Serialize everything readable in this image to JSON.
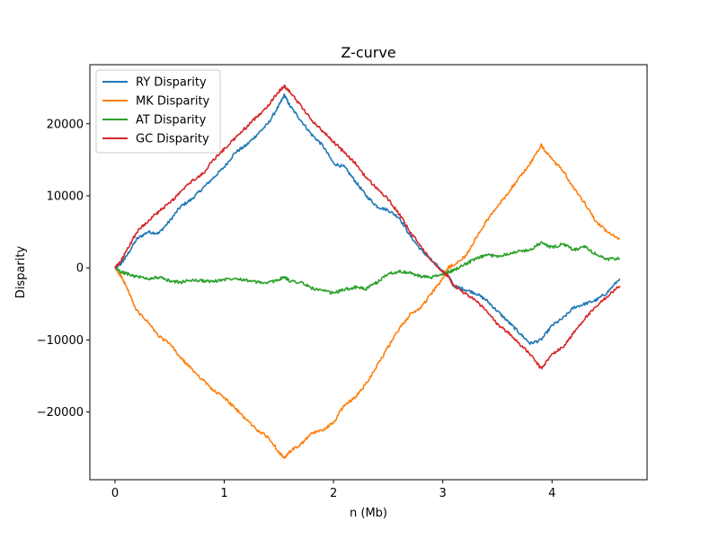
{
  "chart_data": {
    "type": "line",
    "title": "Z-curve",
    "xlabel": "n (Mb)",
    "ylabel": "Disparity",
    "xlim": [
      -0.23,
      4.87
    ],
    "ylim": [
      -29400,
      28200
    ],
    "xticks": [
      0,
      1,
      2,
      3,
      4
    ],
    "xtick_labels": [
      "0",
      "1",
      "2",
      "3",
      "4"
    ],
    "yticks": [
      -20000,
      -10000,
      0,
      10000,
      20000
    ],
    "ytick_labels": [
      "−20000",
      "−10000",
      "0",
      "10000",
      "20000"
    ],
    "grid": false,
    "legend_position": "top-left",
    "series": [
      {
        "name": "RY Disparity",
        "color": "#1f77b4",
        "x": [
          0,
          0.05,
          0.1,
          0.2,
          0.3,
          0.4,
          0.5,
          0.6,
          0.7,
          0.8,
          0.9,
          1.0,
          1.1,
          1.2,
          1.3,
          1.4,
          1.5,
          1.55,
          1.6,
          1.7,
          1.8,
          1.9,
          2.0,
          2.1,
          2.2,
          2.3,
          2.4,
          2.5,
          2.6,
          2.7,
          2.8,
          2.9,
          3.0,
          3.05,
          3.1,
          3.2,
          3.3,
          3.4,
          3.5,
          3.6,
          3.7,
          3.8,
          3.9,
          4.0,
          4.1,
          4.2,
          4.3,
          4.4,
          4.5,
          4.62
        ],
        "y": [
          0,
          500,
          1500,
          4000,
          5000,
          4800,
          6500,
          8500,
          9500,
          11000,
          12500,
          14000,
          16000,
          17000,
          18500,
          20000,
          22500,
          24000,
          22500,
          20500,
          18500,
          17000,
          14500,
          14000,
          12000,
          10000,
          8500,
          8000,
          7000,
          4500,
          2500,
          1000,
          -500,
          -1000,
          -2500,
          -3000,
          -3500,
          -4500,
          -6000,
          -7500,
          -9000,
          -10500,
          -10000,
          -8000,
          -7000,
          -5500,
          -5000,
          -4500,
          -3500,
          -1500
        ]
      },
      {
        "name": "MK Disparity",
        "color": "#ff7f0e",
        "x": [
          0,
          0.05,
          0.1,
          0.2,
          0.3,
          0.4,
          0.5,
          0.6,
          0.7,
          0.8,
          0.9,
          1.0,
          1.1,
          1.2,
          1.3,
          1.4,
          1.5,
          1.55,
          1.6,
          1.7,
          1.8,
          1.9,
          2.0,
          2.1,
          2.2,
          2.3,
          2.4,
          2.5,
          2.6,
          2.7,
          2.8,
          2.9,
          3.0,
          3.05,
          3.1,
          3.2,
          3.3,
          3.4,
          3.5,
          3.6,
          3.7,
          3.8,
          3.9,
          4.0,
          4.1,
          4.2,
          4.3,
          4.4,
          4.5,
          4.62
        ],
        "y": [
          0,
          -1000,
          -2500,
          -6000,
          -7500,
          -9500,
          -10500,
          -12500,
          -14000,
          -15500,
          -17000,
          -18000,
          -19500,
          -21000,
          -22500,
          -23500,
          -25500,
          -26500,
          -25500,
          -24500,
          -23000,
          -22500,
          -21500,
          -19000,
          -18000,
          -16000,
          -13500,
          -11000,
          -8500,
          -6500,
          -5500,
          -3500,
          -1500,
          0,
          500,
          1500,
          4000,
          6500,
          8500,
          10500,
          12500,
          14500,
          17000,
          15000,
          13500,
          11000,
          9000,
          6500,
          5000,
          4000
        ]
      },
      {
        "name": "AT Disparity",
        "color": "#2ca02c",
        "x": [
          0,
          0.05,
          0.1,
          0.2,
          0.3,
          0.4,
          0.5,
          0.6,
          0.7,
          0.8,
          0.9,
          1.0,
          1.1,
          1.2,
          1.3,
          1.4,
          1.5,
          1.55,
          1.6,
          1.7,
          1.8,
          1.9,
          2.0,
          2.1,
          2.2,
          2.3,
          2.4,
          2.5,
          2.6,
          2.7,
          2.8,
          2.9,
          3.0,
          3.05,
          3.1,
          3.2,
          3.3,
          3.4,
          3.5,
          3.6,
          3.7,
          3.8,
          3.9,
          4.0,
          4.1,
          4.2,
          4.3,
          4.4,
          4.5,
          4.62
        ],
        "y": [
          0,
          -500,
          -800,
          -1200,
          -1500,
          -1300,
          -1800,
          -2000,
          -1700,
          -1800,
          -1900,
          -1600,
          -1400,
          -1700,
          -2000,
          -2100,
          -1600,
          -1300,
          -1800,
          -2000,
          -2800,
          -3200,
          -3500,
          -3000,
          -2700,
          -2900,
          -2000,
          -800,
          -500,
          -700,
          -1200,
          -1300,
          -900,
          -600,
          -300,
          500,
          1200,
          1800,
          1600,
          2000,
          2300,
          2500,
          3500,
          2800,
          3300,
          2500,
          2900,
          1900,
          1200,
          1300
        ]
      },
      {
        "name": "GC Disparity",
        "color": "#d62728",
        "x": [
          0,
          0.05,
          0.1,
          0.2,
          0.3,
          0.4,
          0.5,
          0.6,
          0.7,
          0.8,
          0.9,
          1.0,
          1.1,
          1.2,
          1.3,
          1.4,
          1.5,
          1.55,
          1.6,
          1.7,
          1.8,
          1.9,
          2.0,
          2.1,
          2.2,
          2.3,
          2.4,
          2.5,
          2.6,
          2.7,
          2.8,
          2.9,
          3.0,
          3.05,
          3.1,
          3.2,
          3.3,
          3.4,
          3.5,
          3.6,
          3.7,
          3.8,
          3.9,
          4.0,
          4.1,
          4.2,
          4.3,
          4.4,
          4.5,
          4.62
        ],
        "y": [
          0,
          800,
          2200,
          5000,
          6500,
          7800,
          9000,
          10500,
          12000,
          13000,
          15000,
          16500,
          18000,
          19500,
          21000,
          22500,
          24500,
          25200,
          24500,
          22500,
          20500,
          19000,
          17500,
          16000,
          14500,
          12500,
          11000,
          9500,
          7500,
          5000,
          3000,
          1000,
          -500,
          -1200,
          -2500,
          -3500,
          -4500,
          -6000,
          -7800,
          -9000,
          -10500,
          -12000,
          -14000,
          -12000,
          -11000,
          -9000,
          -7000,
          -5500,
          -4000,
          -2500
        ]
      }
    ]
  }
}
